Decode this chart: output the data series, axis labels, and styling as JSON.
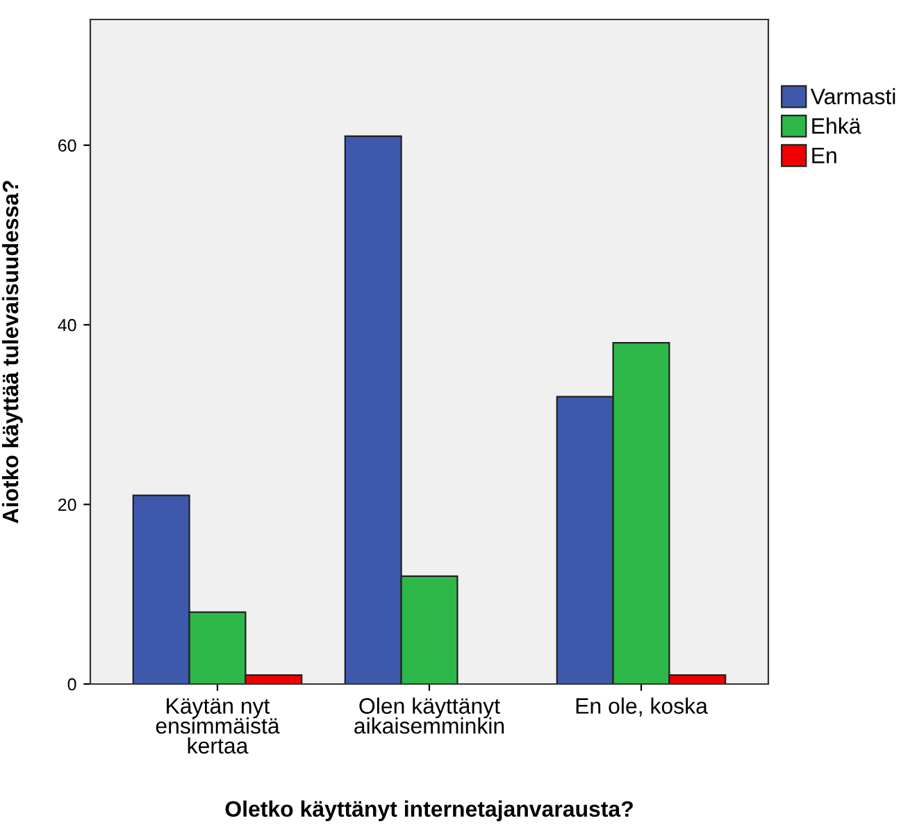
{
  "chart_data": {
    "type": "bar",
    "xlabel": "Oletko käyttänyt internetajanvarausta?",
    "ylabel": "Aiotko käyttää tulevaisuudessa?",
    "categories": [
      "Käytän nyt\nensimmäistä\nkertaa",
      "Olen käyttänyt\naikaisemminkin",
      "En ole, koska"
    ],
    "series": [
      {
        "name": "Varmasti",
        "color": "#3e58ac",
        "values": [
          21,
          61,
          32
        ]
      },
      {
        "name": "Ehkä",
        "color": "#2fb84a",
        "values": [
          8,
          12,
          38
        ]
      },
      {
        "name": "En",
        "color": "#f00000",
        "values": [
          1,
          null,
          1
        ]
      }
    ],
    "ylim": [
      0,
      74
    ],
    "yticks": [
      0,
      20,
      40,
      60
    ],
    "grid": false,
    "legend": "top right"
  }
}
